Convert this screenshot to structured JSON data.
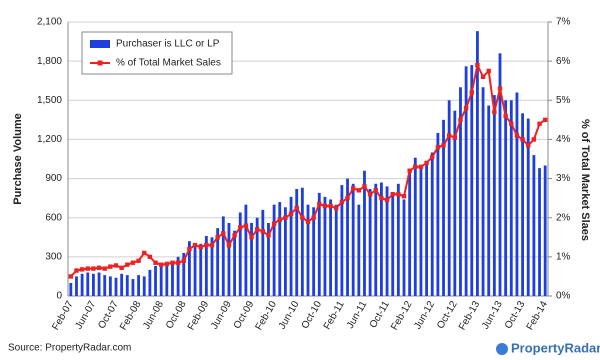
{
  "chart_data": {
    "type": "bar_line",
    "y_label": "Purchase Volume",
    "y2_label": "% of Total Market Slaes",
    "source": "Source: PropertyRadar.com",
    "logo": "PropertyRadar",
    "categories": [
      "Feb-07",
      null,
      null,
      null,
      "Jun-07",
      null,
      null,
      null,
      "Oct-07",
      null,
      null,
      null,
      "Feb-08",
      null,
      null,
      null,
      "Jun-08",
      null,
      null,
      null,
      "Oct-08",
      null,
      null,
      null,
      "Feb-09",
      null,
      null,
      null,
      "Jun-09",
      null,
      null,
      null,
      "Oct-09",
      null,
      null,
      null,
      "Feb-10",
      null,
      null,
      null,
      "Jun-10",
      null,
      null,
      null,
      "Oct-10",
      null,
      null,
      null,
      "Feb-11",
      null,
      null,
      null,
      "Jun-11",
      null,
      null,
      null,
      "Oct-11",
      null,
      null,
      null,
      "Feb-12",
      null,
      null,
      null,
      "Jun-12",
      null,
      null,
      null,
      "Oct-12",
      null,
      null,
      null,
      "Feb-13",
      null,
      null,
      null,
      "Jun-13",
      null,
      null,
      null,
      "Oct-13",
      null,
      null,
      null,
      "Feb-14"
    ],
    "series": [
      {
        "name": "Purchaser is LLC or LP",
        "color": "#1f3fdc",
        "type": "bar",
        "values": [
          100,
          150,
          170,
          180,
          170,
          180,
          160,
          150,
          140,
          170,
          160,
          130,
          160,
          150,
          200,
          230,
          250,
          260,
          250,
          300,
          330,
          420,
          380,
          400,
          460,
          450,
          520,
          610,
          560,
          500,
          640,
          700,
          560,
          600,
          660,
          560,
          700,
          720,
          680,
          760,
          820,
          830,
          700,
          680,
          790,
          760,
          740,
          700,
          850,
          900,
          860,
          700,
          960,
          820,
          860,
          870,
          840,
          780,
          860,
          740,
          960,
          1060,
          980,
          1020,
          1100,
          1250,
          1350,
          1500,
          1420,
          1600,
          1760,
          1770,
          2030,
          1600,
          1460,
          1540,
          1860,
          1500,
          1500,
          1560,
          1400,
          1360,
          1080,
          980,
          1000
        ]
      },
      {
        "name": "% of Total Market Sales",
        "color": "#ee2222",
        "type": "line",
        "axis": "y2",
        "values": [
          0.5,
          0.65,
          0.68,
          0.7,
          0.7,
          0.72,
          0.7,
          0.75,
          0.78,
          0.72,
          0.8,
          0.85,
          0.9,
          1.1,
          1.0,
          0.85,
          0.8,
          0.82,
          0.85,
          0.85,
          0.9,
          1.2,
          1.3,
          1.25,
          1.3,
          1.3,
          1.5,
          1.6,
          1.3,
          1.55,
          1.75,
          1.8,
          1.5,
          1.7,
          1.65,
          1.55,
          1.85,
          1.95,
          2.0,
          2.1,
          2.25,
          2.0,
          1.9,
          2.0,
          2.35,
          2.3,
          2.3,
          2.25,
          2.4,
          2.5,
          2.75,
          2.7,
          2.8,
          2.6,
          2.7,
          2.5,
          2.45,
          2.6,
          2.6,
          2.55,
          3.2,
          3.3,
          3.3,
          3.4,
          3.55,
          3.8,
          3.85,
          4.1,
          4.05,
          4.5,
          4.8,
          5.2,
          5.9,
          5.6,
          5.75,
          4.7,
          5.3,
          4.6,
          4.4,
          4.1,
          4.0,
          3.85,
          4.0,
          4.4,
          4.5
        ]
      }
    ],
    "ylim": [
      0,
      2100
    ],
    "yticks": [
      0,
      300,
      600,
      900,
      {
        "value": 1200,
        "label": "1,200"
      },
      {
        "value": 1500,
        "label": "1,500"
      },
      {
        "value": 1800,
        "label": "1,800"
      },
      {
        "value": 2100,
        "label": "2,100"
      }
    ],
    "y2lim": [
      0,
      7
    ],
    "y2ticks": [
      {
        "value": 0,
        "label": "0%"
      },
      {
        "value": 1,
        "label": "1%"
      },
      {
        "value": 2,
        "label": "2%"
      },
      {
        "value": 3,
        "label": "3%"
      },
      {
        "value": 4,
        "label": "4%"
      },
      {
        "value": 5,
        "label": "5%"
      },
      {
        "value": 6,
        "label": "6%"
      },
      {
        "value": 7,
        "label": "7%"
      }
    ],
    "grid": true,
    "legend": "upper-left"
  }
}
